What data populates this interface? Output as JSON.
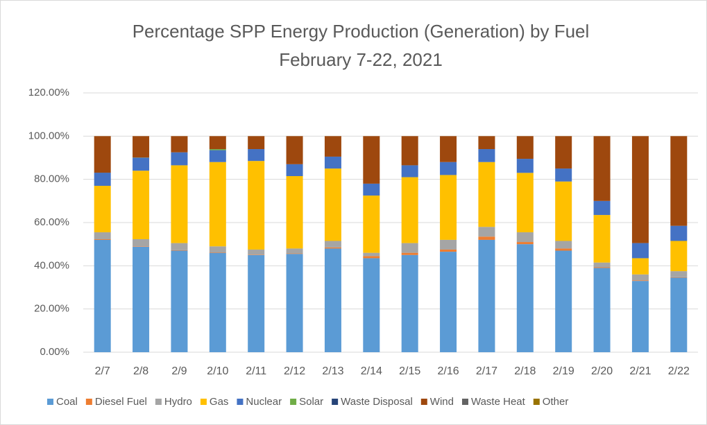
{
  "chart_data": {
    "type": "stacked_bar",
    "title": "Percentage SPP Energy Production (Generation) by Fuel",
    "subtitle": "February 7-22, 2021",
    "categories": [
      "2/7",
      "2/8",
      "2/9",
      "2/10",
      "2/11",
      "2/12",
      "2/13",
      "2/14",
      "2/15",
      "2/16",
      "2/17",
      "2/18",
      "2/19",
      "2/20",
      "2/21",
      "2/22"
    ],
    "series": [
      {
        "name": "Coal",
        "color": "#5b9bd5",
        "values": [
          52,
          48.8,
          47,
          46,
          45,
          45.5,
          48,
          43.5,
          45,
          46.5,
          52,
          50,
          47,
          39,
          33,
          34.5
        ]
      },
      {
        "name": "Diesel Fuel",
        "color": "#ed7d31",
        "values": [
          0.3,
          0.2,
          0.2,
          0.2,
          0.2,
          0.2,
          0.5,
          1,
          1,
          1,
          1.5,
          1,
          1,
          0.3,
          0.3,
          0.2
        ]
      },
      {
        "name": "Hydro",
        "color": "#a5a5a5",
        "values": [
          3.2,
          3.3,
          3.3,
          2.8,
          2.3,
          2.3,
          3,
          1.5,
          4.5,
          4.5,
          4.5,
          4.5,
          3.5,
          2.2,
          2.7,
          2.8
        ]
      },
      {
        "name": "Gas",
        "color": "#ffc000",
        "values": [
          21.5,
          31.7,
          36,
          39,
          41,
          33.5,
          33.5,
          26.5,
          30.5,
          30,
          30,
          27.5,
          27.5,
          22,
          7.5,
          14
        ]
      },
      {
        "name": "Nuclear",
        "color": "#4472c4",
        "values": [
          6,
          6,
          6,
          5.5,
          5.5,
          5.5,
          5.5,
          5.5,
          5.5,
          6,
          6,
          6.5,
          6,
          6.5,
          7,
          7
        ]
      },
      {
        "name": "Solar",
        "color": "#70ad47",
        "values": [
          0,
          0.1,
          0,
          0.5,
          0,
          0,
          0,
          0,
          0,
          0,
          0,
          0,
          0,
          0,
          0,
          0
        ]
      },
      {
        "name": "Waste Disposal",
        "color": "#264478",
        "values": [
          0.1,
          0,
          0,
          0,
          0,
          0,
          0,
          0,
          0,
          0,
          0,
          0,
          0,
          0,
          0,
          0
        ]
      },
      {
        "name": "Wind",
        "color": "#9e480e",
        "values": [
          16.9,
          9.9,
          7.5,
          6,
          6,
          13,
          9.5,
          22,
          13.5,
          12,
          6,
          10.5,
          15,
          30,
          49.5,
          41.5
        ]
      },
      {
        "name": "Waste Heat",
        "color": "#636363",
        "values": [
          0,
          0,
          0,
          0,
          0,
          0,
          0,
          0,
          0,
          0,
          0,
          0,
          0,
          0,
          0,
          0
        ]
      },
      {
        "name": "Other",
        "color": "#997300",
        "values": [
          0,
          0,
          0,
          0,
          0,
          0,
          0,
          0,
          0,
          0,
          0,
          0,
          0,
          0,
          0,
          0
        ]
      }
    ],
    "ylim": [
      0,
      120
    ],
    "yticks": [
      {
        "value": 0,
        "label": "0.00%"
      },
      {
        "value": 20,
        "label": "20.00%"
      },
      {
        "value": 40,
        "label": "40.00%"
      },
      {
        "value": 60,
        "label": "60.00%"
      },
      {
        "value": 80,
        "label": "80.00%"
      },
      {
        "value": 100,
        "label": "100.00%"
      },
      {
        "value": 120,
        "label": "120.00%"
      }
    ],
    "grid": true,
    "legend": "bottom"
  }
}
